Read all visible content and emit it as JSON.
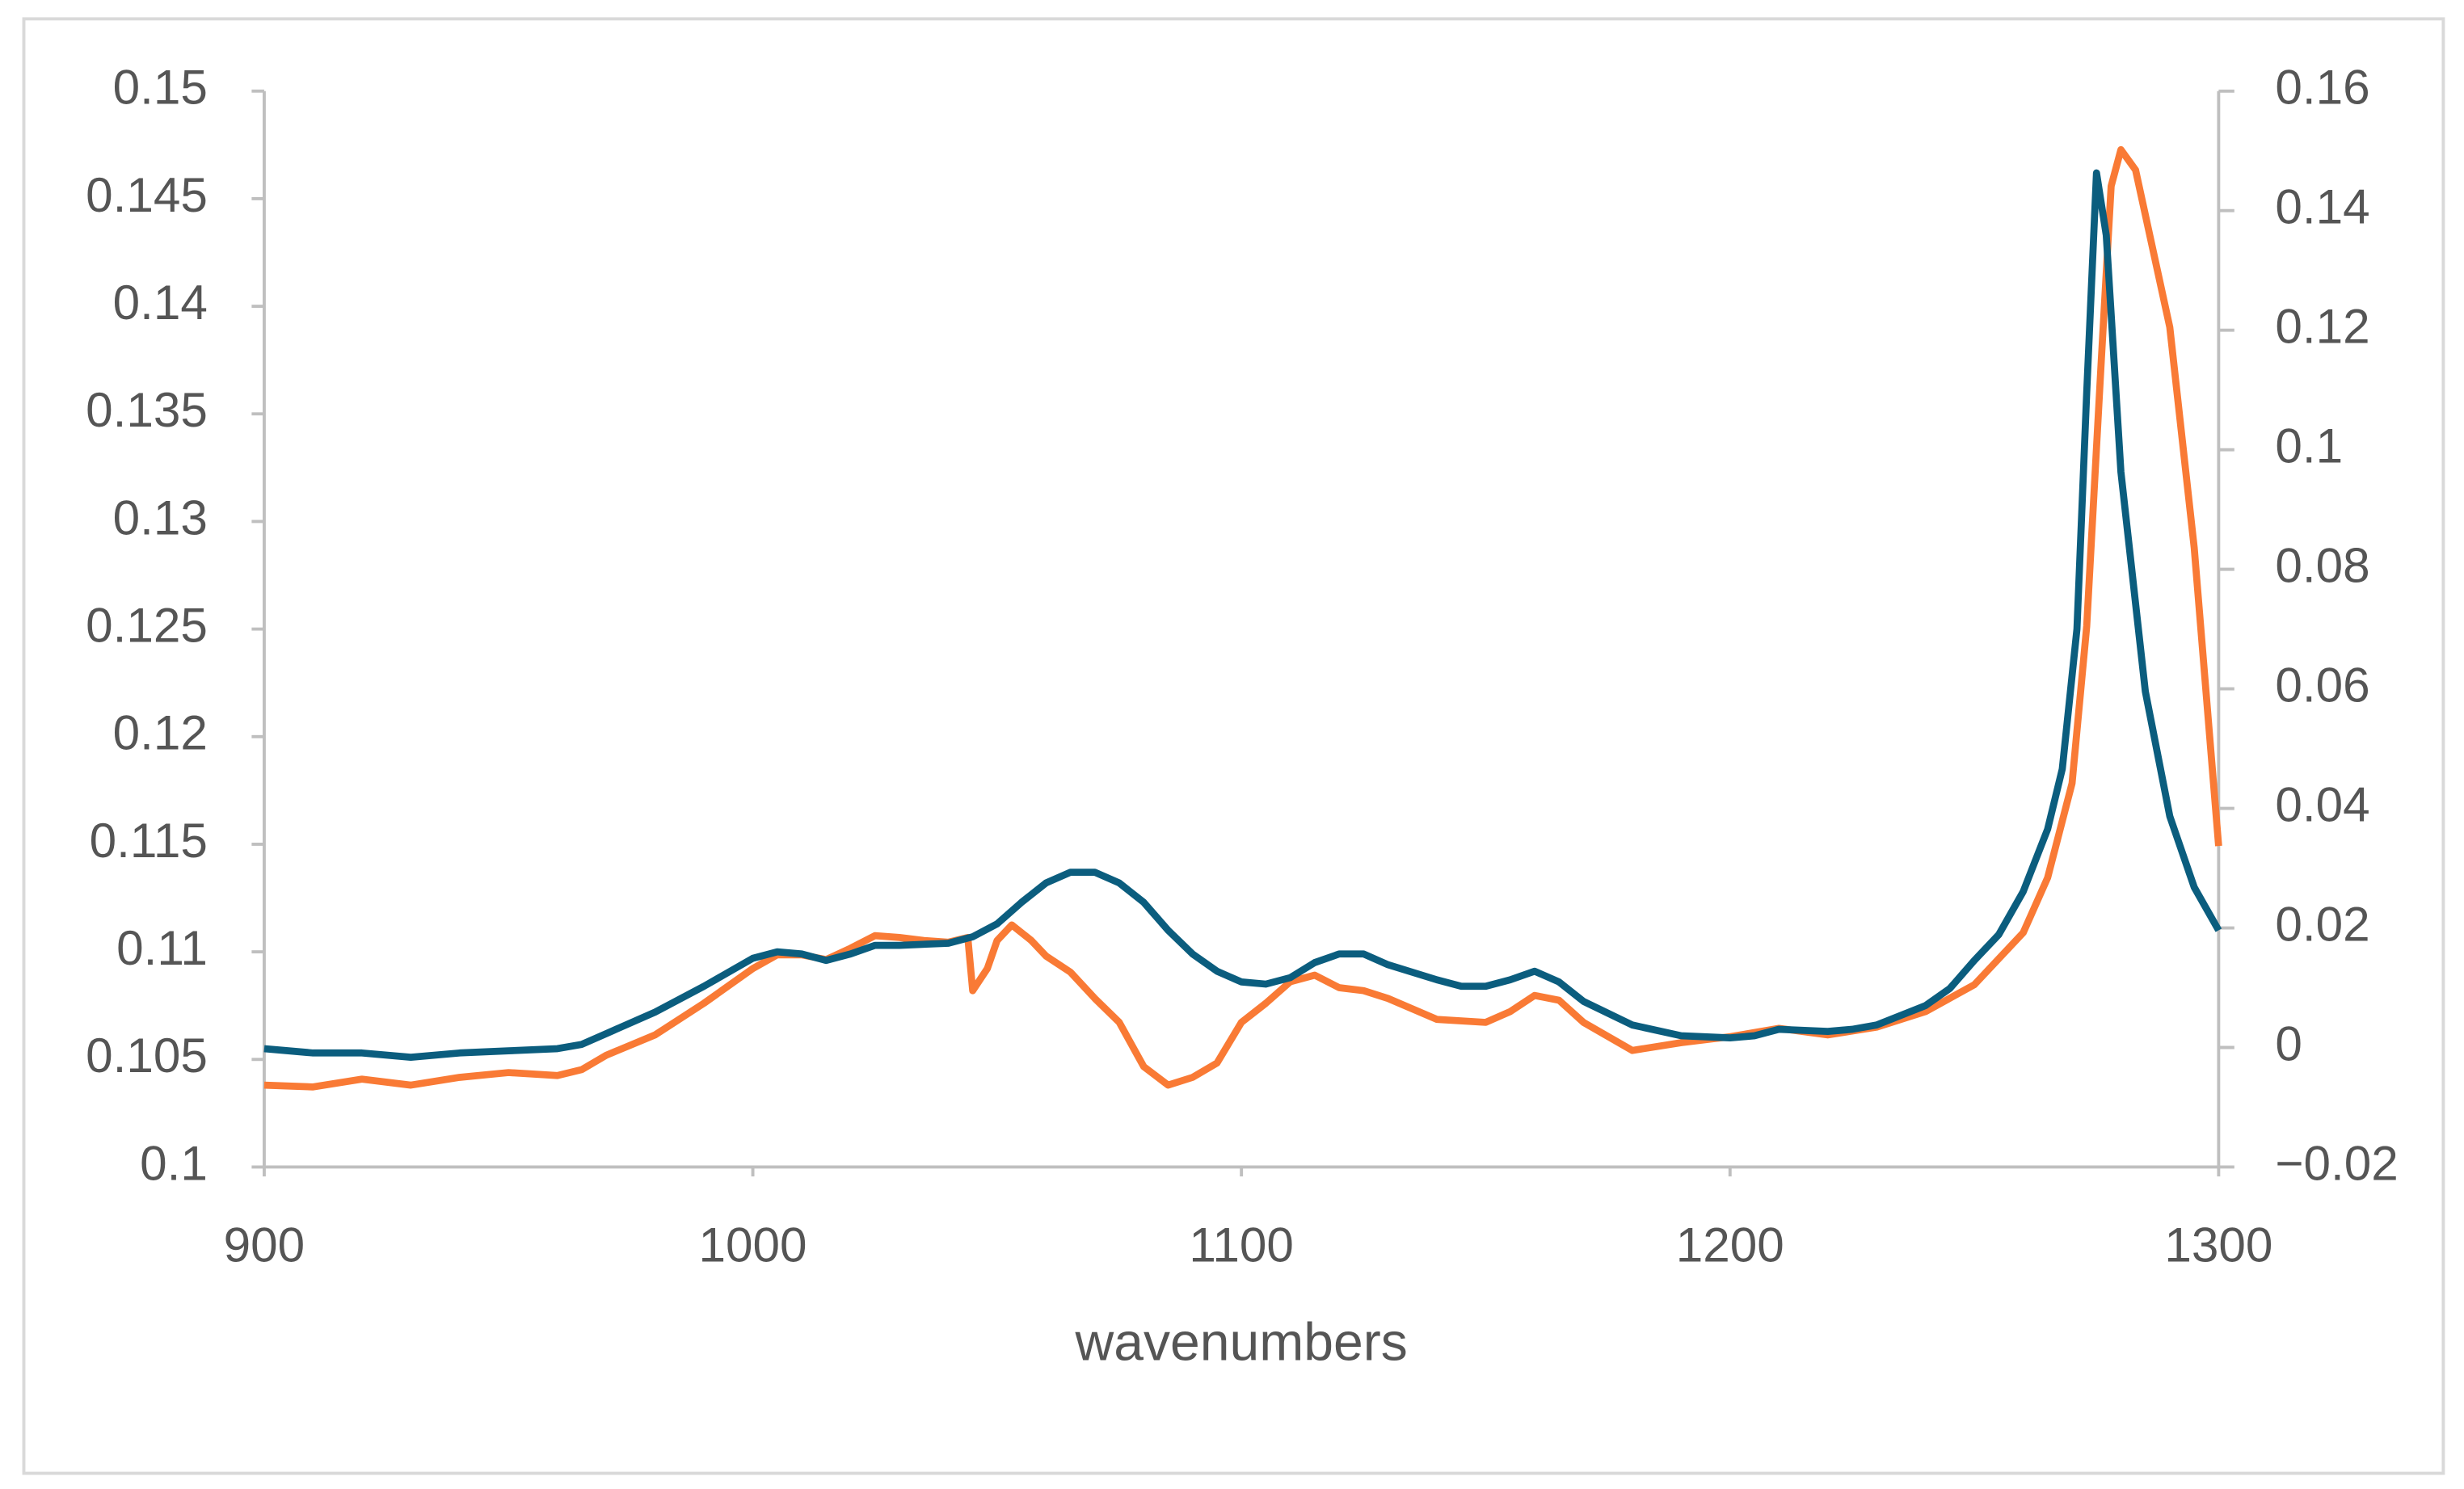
{
  "chart_data": {
    "type": "line",
    "x_label": "wavenumbers",
    "xlim": [
      900,
      1300
    ],
    "xticks": [
      900,
      1000,
      1100,
      1200,
      1300
    ],
    "ylim": [
      0.1,
      0.15
    ],
    "yticks": [
      0.1,
      0.105,
      0.11,
      0.115,
      0.12,
      0.125,
      0.13,
      0.135,
      0.14,
      0.145,
      0.15
    ],
    "y2lim": [
      -0.02,
      0.16
    ],
    "y2ticks": [
      {
        "value": -0.02,
        "label": "−0.02"
      },
      0,
      0.02,
      0.04,
      0.06,
      0.08,
      0.1,
      0.12,
      0.14,
      0.16
    ],
    "series": [
      {
        "color": "#0b5d7e",
        "axis": "y",
        "x": [
          900,
          910,
          920,
          930,
          940,
          950,
          960,
          965,
          970,
          980,
          990,
          1000,
          1005,
          1010,
          1015,
          1020,
          1025,
          1030,
          1040,
          1045,
          1050,
          1055,
          1060,
          1065,
          1070,
          1075,
          1080,
          1085,
          1090,
          1095,
          1100,
          1105,
          1110,
          1115,
          1120,
          1125,
          1130,
          1140,
          1145,
          1150,
          1155,
          1160,
          1165,
          1170,
          1180,
          1190,
          1200,
          1205,
          1210,
          1220,
          1225,
          1230,
          1240,
          1245,
          1250,
          1255,
          1260,
          1265,
          1268,
          1271,
          1273,
          1275,
          1277,
          1280,
          1285,
          1290,
          1295,
          1300
        ],
        "values": [
          0.1055,
          0.1053,
          0.1053,
          0.1051,
          0.1053,
          0.1054,
          0.1055,
          0.1057,
          0.1062,
          0.1072,
          0.1084,
          0.1097,
          0.11,
          0.1099,
          0.1096,
          0.1099,
          0.1103,
          0.1103,
          0.1104,
          0.1107,
          0.1113,
          0.1123,
          0.1132,
          0.1137,
          0.1137,
          0.1132,
          0.1123,
          0.111,
          0.1099,
          0.1091,
          0.1086,
          0.1085,
          0.1088,
          0.1095,
          0.1099,
          0.1099,
          0.1094,
          0.1087,
          0.1084,
          0.1084,
          0.1087,
          0.1091,
          0.1086,
          0.1077,
          0.1066,
          0.1061,
          0.106,
          0.1061,
          0.1064,
          0.1063,
          0.1064,
          0.1066,
          0.1075,
          0.1083,
          0.1096,
          0.1108,
          0.1128,
          0.1157,
          0.1185,
          0.125,
          0.136,
          0.1462,
          0.1433,
          0.1323,
          0.1221,
          0.1163,
          0.113,
          0.111
        ]
      },
      {
        "color": "#f97a35",
        "axis": "y2",
        "x": [
          900,
          910,
          920,
          930,
          940,
          950,
          960,
          965,
          970,
          980,
          990,
          1000,
          1005,
          1010,
          1015,
          1020,
          1025,
          1030,
          1035,
          1040,
          1044,
          1045,
          1048,
          1050,
          1053,
          1057,
          1060,
          1065,
          1070,
          1075,
          1080,
          1085,
          1090,
          1095,
          1100,
          1105,
          1110,
          1115,
          1120,
          1125,
          1130,
          1140,
          1150,
          1155,
          1160,
          1165,
          1170,
          1180,
          1190,
          1200,
          1210,
          1220,
          1230,
          1240,
          1250,
          1260,
          1265,
          1270,
          1273,
          1276,
          1278,
          1280,
          1283,
          1290,
          1295,
          1300
        ],
        "values": [
          -0.0063,
          -0.0066,
          -0.0053,
          -0.0063,
          -0.005,
          -0.0042,
          -0.0047,
          -0.0037,
          -0.0013,
          0.0021,
          0.0074,
          0.0132,
          0.0155,
          0.0155,
          0.0147,
          0.0166,
          0.0187,
          0.0184,
          0.0179,
          0.0176,
          0.0184,
          0.0095,
          0.0132,
          0.0179,
          0.0205,
          0.0179,
          0.0153,
          0.0126,
          0.0082,
          0.0042,
          -0.0032,
          -0.0063,
          -0.005,
          -0.0026,
          0.0042,
          0.0074,
          0.011,
          0.0121,
          0.01,
          0.0095,
          0.0082,
          0.0047,
          0.0042,
          0.006,
          0.0087,
          0.0079,
          0.0042,
          -0.0005,
          0.0008,
          0.0018,
          0.0032,
          0.0021,
          0.0034,
          0.006,
          0.0105,
          0.0192,
          0.0284,
          0.0442,
          0.0705,
          0.1152,
          0.1441,
          0.1502,
          0.1468,
          0.1205,
          0.0836,
          0.0337
        ]
      }
    ]
  }
}
